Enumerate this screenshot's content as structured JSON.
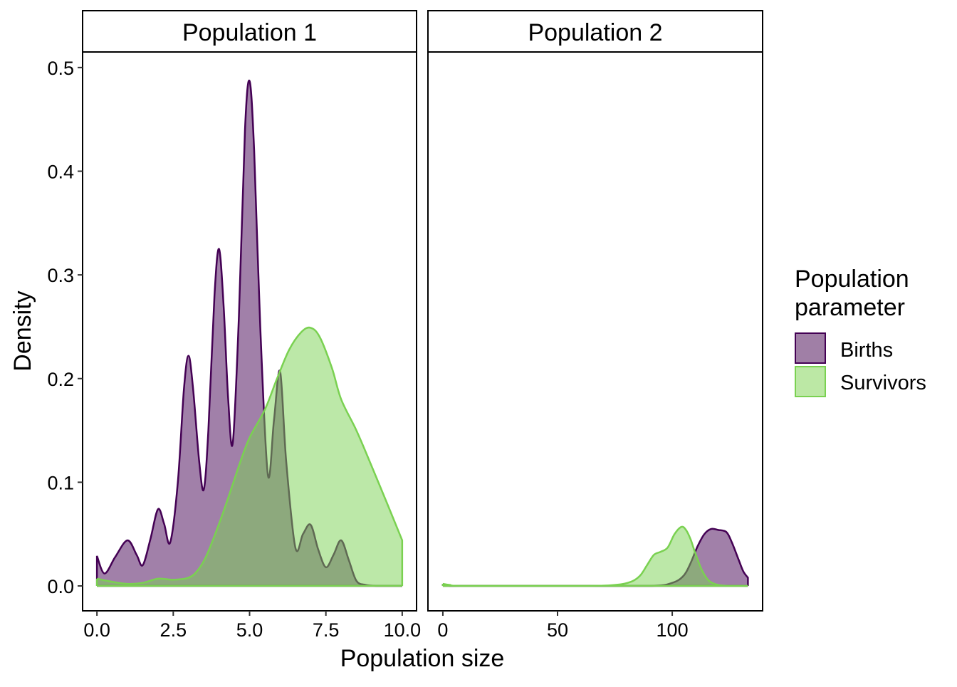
{
  "chart_data": {
    "type": "area",
    "subtype": "density",
    "xlabel": "Population size",
    "ylabel": "Density",
    "ylim": [
      -0.024,
      0.515
    ],
    "yticks": [
      0.0,
      0.1,
      0.2,
      0.3,
      0.4,
      0.5
    ],
    "ytick_labels": [
      "0.0",
      "0.1",
      "0.2",
      "0.3",
      "0.4",
      "0.5"
    ],
    "legend": {
      "title_lines": [
        "Population",
        "parameter"
      ],
      "placement": "right",
      "entries": [
        "Births",
        "Survivors"
      ]
    },
    "colors": {
      "Births": {
        "line": "#440154",
        "fill": "#A07FA6"
      },
      "Survivors": {
        "line": "#7AD151",
        "fill": "#BCE8A5"
      },
      "overlap": "#8CA67B"
    },
    "panels": [
      {
        "title": "Population 1",
        "xlim": [
          -0.47,
          10.47
        ],
        "xticks": [
          0,
          2.5,
          5,
          7.5,
          10
        ],
        "xtick_labels": [
          "0.0",
          "2.5",
          "5.0",
          "7.5",
          "10.0"
        ],
        "series": [
          {
            "name": "Births",
            "x": [
              0,
              0.25,
              0.6,
              1,
              1.3,
              1.5,
              1.75,
              2,
              2.2,
              2.4,
              2.65,
              2.85,
              3,
              3.15,
              3.35,
              3.5,
              3.65,
              3.85,
              4,
              4.15,
              4.3,
              4.45,
              4.65,
              4.85,
              5,
              5.15,
              5.35,
              5.6,
              5.8,
              6,
              6.2,
              6.5,
              6.75,
              7,
              7.25,
              7.5,
              7.75,
              8,
              8.25,
              8.5,
              8.8,
              9.2,
              10
            ],
            "y": [
              0.029,
              0.012,
              0.028,
              0.044,
              0.03,
              0.02,
              0.045,
              0.074,
              0.06,
              0.042,
              0.1,
              0.19,
              0.222,
              0.19,
              0.12,
              0.093,
              0.15,
              0.28,
              0.325,
              0.27,
              0.18,
              0.138,
              0.26,
              0.44,
              0.487,
              0.42,
              0.25,
              0.107,
              0.16,
              0.207,
              0.12,
              0.037,
              0.05,
              0.059,
              0.035,
              0.018,
              0.03,
              0.044,
              0.025,
              0.005,
              0.001,
              0,
              0
            ]
          },
          {
            "name": "Survivors",
            "x": [
              0,
              0.5,
              1,
              1.5,
              2,
              2.5,
              3,
              3.3,
              3.6,
              4,
              4.3,
              4.7,
              5,
              5.5,
              5.9,
              6.3,
              6.7,
              7,
              7.3,
              7.7,
              8,
              8.5,
              8.95,
              9.5,
              10
            ],
            "y": [
              0.007,
              0.004,
              0.002,
              0.003,
              0.007,
              0.006,
              0.008,
              0.015,
              0.03,
              0.06,
              0.085,
              0.12,
              0.143,
              0.17,
              0.2,
              0.228,
              0.245,
              0.249,
              0.24,
              0.21,
              0.18,
              0.15,
              0.119,
              0.08,
              0.044
            ]
          }
        ]
      },
      {
        "title": "Population 2",
        "xlim": [
          -6.5,
          139.4
        ],
        "xticks": [
          0,
          50,
          100
        ],
        "xtick_labels": [
          "0",
          "50",
          "100"
        ],
        "series": [
          {
            "name": "Births",
            "x": [
              0,
              3,
              10,
              50,
              90,
              100,
              105,
              108,
              111,
              114,
              117,
              120,
              123.6,
              126,
              129,
              131,
              133
            ],
            "y": [
              0.002,
              0,
              0,
              0,
              0,
              0.003,
              0.01,
              0.022,
              0.038,
              0.05,
              0.055,
              0.054,
              0.052,
              0.042,
              0.025,
              0.014,
              0.008
            ]
          },
          {
            "name": "Survivors",
            "x": [
              0,
              3,
              10,
              60,
              75,
              82,
              86,
              89,
              92,
              95,
              98,
              101,
              104,
              106,
              108,
              110,
              113,
              116,
              120,
              125,
              133
            ],
            "y": [
              0.002,
              0.001,
              0,
              0,
              0.001,
              0.004,
              0.01,
              0.02,
              0.03,
              0.033,
              0.037,
              0.05,
              0.057,
              0.054,
              0.045,
              0.032,
              0.015,
              0.005,
              0.001,
              0,
              0
            ]
          }
        ]
      }
    ]
  }
}
